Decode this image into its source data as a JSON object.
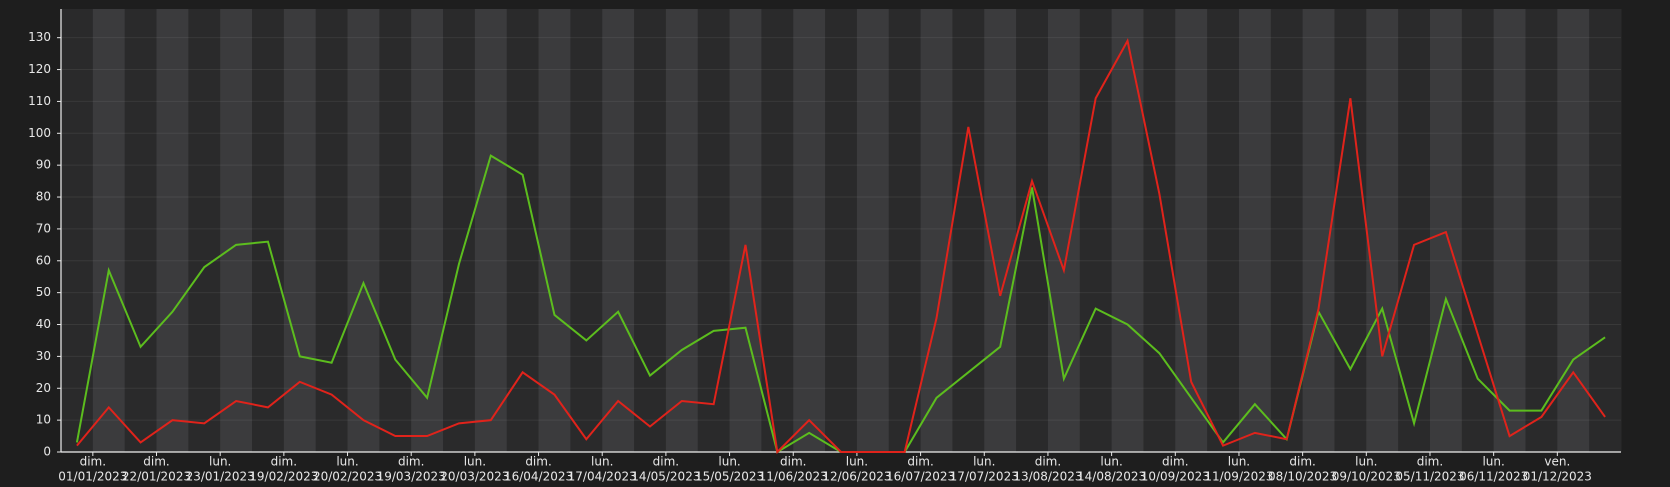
{
  "chart_data": {
    "type": "line",
    "ylim": [
      0,
      139
    ],
    "yticks": [
      0,
      10,
      20,
      30,
      40,
      50,
      60,
      70,
      80,
      90,
      100,
      110,
      120,
      130
    ],
    "grid": true,
    "x_labels": [
      [
        "dim.",
        "01/01/2023"
      ],
      [
        "dim.",
        "22/01/2023"
      ],
      [
        "lun.",
        "23/01/2023"
      ],
      [
        "dim.",
        "19/02/2023"
      ],
      [
        "lun.",
        "20/02/2023"
      ],
      [
        "dim.",
        "19/03/2023"
      ],
      [
        "lun.",
        "20/03/2023"
      ],
      [
        "dim.",
        "16/04/2023"
      ],
      [
        "lun.",
        "17/04/2023"
      ],
      [
        "dim.",
        "14/05/2023"
      ],
      [
        "lun.",
        "15/05/2023"
      ],
      [
        "dim.",
        "11/06/2023"
      ],
      [
        "lun.",
        "12/06/2023"
      ],
      [
        "dim.",
        "16/07/2023"
      ],
      [
        "lun.",
        "17/07/2023"
      ],
      [
        "dim.",
        "13/08/2023"
      ],
      [
        "lun.",
        "14/08/2023"
      ],
      [
        "dim.",
        "10/09/2023"
      ],
      [
        "lun.",
        "11/09/2023"
      ],
      [
        "dim.",
        "08/10/2023"
      ],
      [
        "lun.",
        "09/10/2023"
      ],
      [
        "dim.",
        "05/11/2023"
      ],
      [
        "lun.",
        "06/11/2023"
      ],
      [
        "ven.",
        "01/12/2023"
      ]
    ],
    "series": [
      {
        "color": "#5cbd1e",
        "values": [
          3,
          57,
          33,
          44,
          58,
          65,
          66,
          30,
          28,
          53,
          29,
          17,
          59,
          93,
          87,
          43,
          35,
          44,
          24,
          32,
          38,
          39,
          0,
          6,
          0,
          0,
          0,
          17,
          25,
          33,
          83,
          23,
          45,
          40,
          31,
          17,
          3,
          15,
          4,
          44,
          26,
          45,
          9,
          48,
          23,
          13,
          13,
          29,
          36
        ]
      },
      {
        "color": "#e0231b",
        "values": [
          2,
          14,
          3,
          10,
          9,
          16,
          14,
          22,
          18,
          10,
          5,
          5,
          9,
          10,
          25,
          18,
          4,
          16,
          8,
          16,
          15,
          65,
          0,
          10,
          0,
          0,
          0,
          42,
          102,
          49,
          85,
          57,
          111,
          129,
          81,
          22,
          2,
          6,
          4,
          45,
          111,
          30,
          65,
          69,
          37,
          5,
          11,
          25,
          11
        ]
      }
    ]
  }
}
